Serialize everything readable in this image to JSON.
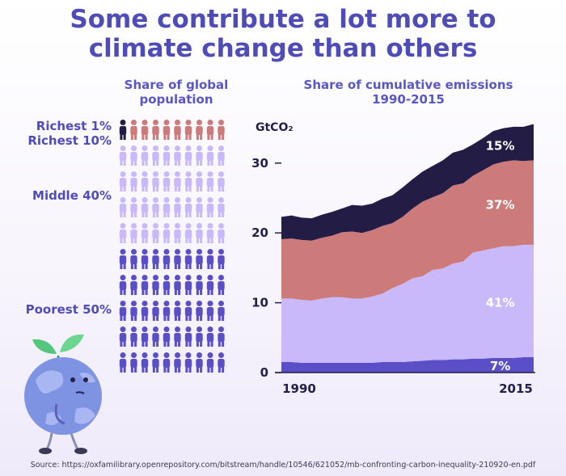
{
  "title_line1": "Some contribute a lot more to",
  "title_line2": "climate change than others",
  "population_title_line1": "Share of global",
  "population_title_line2": "population",
  "emissions_title_line1": "Share of cumulative emissions",
  "emissions_title_line2": "1990-2015",
  "groups": {
    "richest1": "Richest 1%",
    "richest10": "Richest 10%",
    "middle40": "Middle 40%",
    "poorest50": "Poorest 50%"
  },
  "colors": {
    "title": "#4f4bb7",
    "richest1": "#231d45",
    "richest10": "#cc7a7a",
    "middle40": "#c9b9fb",
    "poorest50": "#5b4fc8"
  },
  "source": "Source: https://oxfamilibrary.openrepository.com/bitstream/handle/10546/621052/mb-confronting-carbon-inequality-210920-en.pdf",
  "chart_data": {
    "type": "area",
    "stacked": true,
    "ylabel": "GtCO₂",
    "ylim": [
      0,
      36
    ],
    "yticks": [
      0,
      10,
      20,
      30
    ],
    "xlim": [
      1990,
      2015
    ],
    "xtick_labels": [
      "1990",
      "2015"
    ],
    "x": [
      1990,
      1991,
      1992,
      1993,
      1994,
      1995,
      1996,
      1997,
      1998,
      1999,
      2000,
      2001,
      2002,
      2003,
      2004,
      2005,
      2006,
      2007,
      2008,
      2009,
      2010,
      2011,
      2012,
      2013,
      2014,
      2015
    ],
    "series": [
      {
        "name": "Poorest 50%",
        "share_label": "7%",
        "values": [
          1.5,
          1.5,
          1.4,
          1.4,
          1.4,
          1.4,
          1.4,
          1.4,
          1.4,
          1.4,
          1.5,
          1.5,
          1.5,
          1.6,
          1.7,
          1.8,
          1.8,
          1.9,
          1.9,
          2.0,
          2.0,
          2.1,
          2.1,
          2.1,
          2.2,
          2.2
        ]
      },
      {
        "name": "Middle 40%",
        "share_label": "41%",
        "values": [
          9.1,
          9.1,
          9.0,
          8.9,
          9.2,
          9.4,
          9.4,
          9.2,
          9.2,
          9.5,
          9.8,
          10.6,
          11.2,
          11.9,
          12.1,
          12.9,
          13.1,
          13.7,
          14.0,
          15.2,
          15.5,
          15.7,
          16.0,
          16.0,
          16.1,
          16.1
        ]
      },
      {
        "name": "Middle 40%",
        "share_label": "",
        "values": [
          0,
          0,
          0,
          0,
          0,
          0,
          0,
          0,
          0,
          0,
          0,
          0,
          0,
          0,
          0,
          0,
          0,
          0,
          0,
          0,
          0,
          0,
          0,
          0,
          0,
          0
        ]
      },
      {
        "name": "Richest 10%",
        "share_label": "37%",
        "values": [
          8.5,
          8.6,
          8.6,
          8.6,
          8.7,
          8.8,
          9.3,
          9.6,
          9.4,
          9.5,
          9.7,
          9.3,
          9.6,
          10.0,
          10.7,
          10.4,
          10.8,
          11.2,
          11.2,
          11.0,
          11.5,
          12.0,
          12.1,
          12.3,
          12.0,
          12.1
        ]
      },
      {
        "name": "Richest 1%",
        "share_label": "15%",
        "values": [
          3.2,
          3.3,
          3.2,
          3.2,
          3.3,
          3.4,
          3.4,
          3.8,
          3.9,
          3.8,
          3.9,
          4.0,
          4.2,
          4.2,
          4.3,
          4.5,
          4.7,
          4.7,
          4.8,
          4.5,
          4.6,
          4.8,
          4.8,
          4.8,
          4.9,
          5.2
        ]
      }
    ]
  }
}
